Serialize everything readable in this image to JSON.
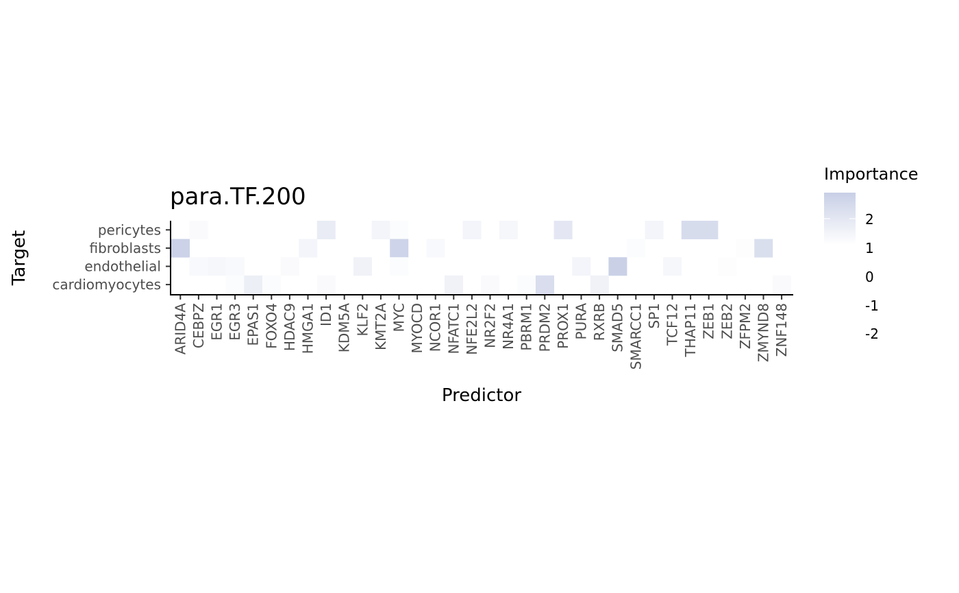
{
  "chart_data": {
    "type": "heatmap",
    "title": "para.TF.200",
    "xlabel": "Predictor",
    "ylabel": "Target",
    "legend_title": "Importance",
    "legend_breaks": [
      2,
      1,
      0,
      -1,
      -2
    ],
    "value_range": [
      0,
      3
    ],
    "color_low": "#ffffff",
    "color_high": "#c8cfe6",
    "grid": false,
    "legend_position": "right",
    "x_categories": [
      "ARID4A",
      "CEBPZ",
      "EGR1",
      "EGR3",
      "EPAS1",
      "FOXO4",
      "HDAC9",
      "HMGA1",
      "ID1",
      "KDM5A",
      "KLF2",
      "KMT2A",
      "MYC",
      "MYOCD",
      "NCOR1",
      "NFATC1",
      "NFE2L2",
      "NR2F2",
      "NR4A1",
      "PBRM1",
      "PRDM2",
      "PROX1",
      "PURA",
      "RXRB",
      "SMAD5",
      "SMARCC1",
      "SP1",
      "TCF12",
      "THAP11",
      "ZEB1",
      "ZEB2",
      "ZFPM2",
      "ZMYND8",
      "ZNF148"
    ],
    "y_categories": [
      "pericytes",
      "fibroblasts",
      "endothelial",
      "cardiomyocytes"
    ],
    "values": [
      [
        0,
        0.3,
        0,
        0,
        0,
        0,
        0,
        0,
        1.2,
        0,
        0,
        0.6,
        0.2,
        0,
        0,
        0,
        0.6,
        0,
        0.5,
        0,
        0,
        1.5,
        0,
        0,
        0,
        0,
        0.6,
        0,
        2.2,
        2.2,
        0,
        0,
        0,
        0
      ],
      [
        2.8,
        0,
        0,
        0,
        0,
        0,
        0,
        0.6,
        0,
        0,
        0,
        0,
        2.7,
        0,
        0.4,
        0,
        0,
        0,
        0,
        0,
        0,
        0,
        0,
        0,
        0,
        0.2,
        0,
        0,
        0,
        0,
        0,
        0.1,
        2.0,
        0
      ],
      [
        0,
        0.4,
        0.5,
        0.4,
        0,
        0,
        0.3,
        0,
        0,
        0,
        0.8,
        0,
        0.2,
        0,
        0,
        0,
        0,
        0,
        0,
        0,
        0,
        0,
        0.6,
        0,
        2.9,
        0,
        0,
        0.5,
        0,
        0,
        0.1,
        0,
        0,
        0
      ],
      [
        0,
        0,
        0,
        0.2,
        1.0,
        0.2,
        0,
        0,
        0.3,
        0,
        0,
        0,
        0,
        0,
        0,
        0.8,
        0,
        0.3,
        0,
        0.2,
        2.1,
        0,
        0,
        0.8,
        0,
        0,
        0,
        0,
        0,
        0,
        0,
        0,
        0,
        0.3
      ]
    ]
  }
}
